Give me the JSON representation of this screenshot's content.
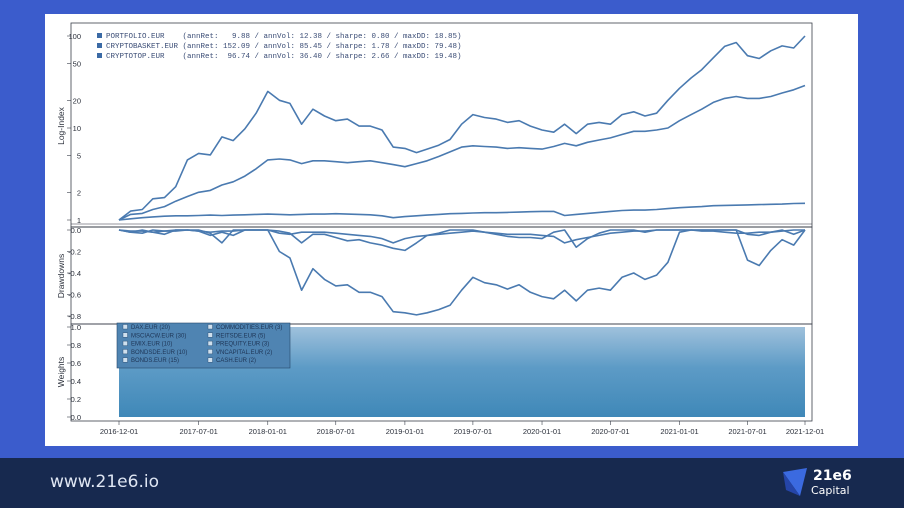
{
  "footer": {
    "url": "www.21e6.io",
    "brand": "21e6",
    "brand_sub": "Capital"
  },
  "colors": {
    "background": "#3b5ccc",
    "footer": "#17294f",
    "line": "#4a7ab0",
    "weights_fill": "#3f88b8"
  },
  "chart_data": [
    {
      "type": "line",
      "ylabel": "Log-Index",
      "yscale": "log",
      "yticks": [
        "1",
        "2",
        "5",
        "10",
        "20",
        "50",
        "100"
      ],
      "ylim": [
        0.85,
        110
      ],
      "x": [
        "2016-12-01",
        "2017-01-01",
        "2017-02-01",
        "2017-03-01",
        "2017-04-01",
        "2017-05-01",
        "2017-06-01",
        "2017-07-01",
        "2017-08-01",
        "2017-09-01",
        "2017-10-01",
        "2017-11-01",
        "2017-12-01",
        "2018-01-01",
        "2018-02-01",
        "2018-03-01",
        "2018-04-01",
        "2018-05-01",
        "2018-06-01",
        "2018-07-01",
        "2018-08-01",
        "2018-09-01",
        "2018-10-01",
        "2018-11-01",
        "2018-12-01",
        "2019-01-01",
        "2019-02-01",
        "2019-03-01",
        "2019-04-01",
        "2019-05-01",
        "2019-06-01",
        "2019-07-01",
        "2019-08-01",
        "2019-09-01",
        "2019-10-01",
        "2019-11-01",
        "2019-12-01",
        "2020-01-01",
        "2020-02-01",
        "2020-03-01",
        "2020-04-01",
        "2020-05-01",
        "2020-06-01",
        "2020-07-01",
        "2020-08-01",
        "2020-09-01",
        "2020-10-01",
        "2020-11-01",
        "2020-12-01",
        "2021-01-01",
        "2021-02-01",
        "2021-03-01",
        "2021-04-01",
        "2021-05-01",
        "2021-06-01",
        "2021-07-01",
        "2021-08-01",
        "2021-09-01",
        "2021-10-01",
        "2021-11-01",
        "2021-12-01"
      ],
      "legend": [
        "PORTFOLIO.EUR    (annRet:   9.88 / annVol: 12.38 / sharpe: 0.80 / maxDD: 18.85)",
        "CRYPTOBASKET.EUR (annRet: 152.09 / annVol: 85.45 / sharpe: 1.78 / maxDD: 79.48)",
        "CRYPTOTOP.EUR    (annRet:  96.74 / annVol: 36.40 / sharpe: 2.66 / maxDD: 19.48)"
      ],
      "series": [
        {
          "name": "PORTFOLIO.EUR",
          "values": [
            1.0,
            1.03,
            1.06,
            1.08,
            1.1,
            1.11,
            1.11,
            1.12,
            1.13,
            1.12,
            1.13,
            1.14,
            1.15,
            1.16,
            1.15,
            1.14,
            1.15,
            1.16,
            1.16,
            1.17,
            1.16,
            1.15,
            1.14,
            1.11,
            1.06,
            1.09,
            1.11,
            1.13,
            1.15,
            1.17,
            1.18,
            1.19,
            1.2,
            1.2,
            1.21,
            1.22,
            1.23,
            1.24,
            1.24,
            1.12,
            1.15,
            1.18,
            1.21,
            1.24,
            1.27,
            1.28,
            1.28,
            1.3,
            1.33,
            1.36,
            1.38,
            1.4,
            1.43,
            1.44,
            1.45,
            1.46,
            1.47,
            1.48,
            1.49,
            1.51,
            1.52
          ]
        },
        {
          "name": "CRYPTOBASKET.EUR",
          "values": [
            1.0,
            1.25,
            1.3,
            1.7,
            1.75,
            2.3,
            4.5,
            5.3,
            5.1,
            8,
            7.3,
            9.8,
            14.5,
            25,
            20,
            18.5,
            11,
            16,
            13.5,
            12,
            12.5,
            10.5,
            10.5,
            9.5,
            6.2,
            6.0,
            5.4,
            5.9,
            6.5,
            7.5,
            11,
            14,
            13,
            12.5,
            11.5,
            12,
            10.5,
            9.5,
            9.0,
            11,
            8.7,
            11,
            11.5,
            11,
            14,
            15,
            13.5,
            14.5,
            20,
            27,
            35,
            43,
            58,
            77,
            85,
            61,
            57,
            69,
            78,
            74,
            100
          ]
        },
        {
          "name": "CRYPTOTOP.EUR",
          "values": [
            1.0,
            1.15,
            1.18,
            1.3,
            1.4,
            1.6,
            1.8,
            2.0,
            2.1,
            2.4,
            2.6,
            3.0,
            3.6,
            4.5,
            4.6,
            4.5,
            4.1,
            4.4,
            4.4,
            4.3,
            4.2,
            4.3,
            4.4,
            4.2,
            4.0,
            3.8,
            4.1,
            4.4,
            4.9,
            5.5,
            6.2,
            6.4,
            6.3,
            6.2,
            6.0,
            6.1,
            6.0,
            5.9,
            6.3,
            6.8,
            6.4,
            7.0,
            7.4,
            7.8,
            8.5,
            9.2,
            9.2,
            9.5,
            10,
            12,
            14,
            16,
            19,
            21,
            22,
            21,
            21,
            22,
            24,
            26,
            29
          ]
        }
      ]
    },
    {
      "type": "line",
      "ylabel": "Drawdowns",
      "yticks": [
        "0.0",
        "-0.2",
        "-0.4",
        "-0.6",
        "-0.8"
      ],
      "ylim": [
        -0.9,
        0.02
      ],
      "series": [
        {
          "name": "PORTFOLIO.EUR",
          "values": [
            0,
            -0.01,
            -0.01,
            -0.02,
            -0.01,
            -0.01,
            0,
            -0.01,
            -0.02,
            -0.01,
            -0.01,
            0,
            0,
            0,
            -0.03,
            -0.04,
            -0.02,
            -0.02,
            -0.02,
            -0.03,
            -0.04,
            -0.05,
            -0.06,
            -0.08,
            -0.12,
            -0.08,
            -0.06,
            -0.05,
            -0.04,
            -0.03,
            -0.02,
            -0.01,
            -0.02,
            -0.03,
            -0.04,
            -0.04,
            -0.04,
            -0.05,
            -0.06,
            -0.12,
            -0.09,
            -0.07,
            -0.05,
            -0.03,
            -0.02,
            -0.01,
            -0.01,
            0,
            0,
            0,
            0,
            -0.01,
            -0.01,
            -0.02,
            -0.03,
            -0.03,
            -0.02,
            -0.02,
            -0.01,
            0,
            0
          ]
        },
        {
          "name": "CRYPTOBASKET.EUR",
          "values": [
            0,
            -0.02,
            0,
            -0.02,
            -0.04,
            0,
            0,
            -0.01,
            -0.05,
            -0.02,
            -0.05,
            0,
            0,
            0,
            -0.2,
            -0.26,
            -0.56,
            -0.36,
            -0.46,
            -0.52,
            -0.51,
            -0.58,
            -0.58,
            -0.62,
            -0.76,
            -0.77,
            -0.79,
            -0.77,
            -0.74,
            -0.7,
            -0.56,
            -0.44,
            -0.49,
            -0.51,
            -0.55,
            -0.51,
            -0.58,
            -0.62,
            -0.64,
            -0.56,
            -0.66,
            -0.56,
            -0.54,
            -0.56,
            -0.44,
            -0.4,
            -0.46,
            -0.42,
            -0.3,
            -0.02,
            0,
            0,
            0,
            0,
            0,
            -0.28,
            -0.33,
            -0.19,
            -0.09,
            -0.14,
            0
          ]
        },
        {
          "name": "CRYPTOTOP.EUR",
          "values": [
            0,
            -0.02,
            -0.03,
            0,
            -0.01,
            0,
            0,
            0,
            -0.03,
            -0.12,
            0,
            0,
            0,
            0,
            -0.01,
            -0.03,
            -0.12,
            -0.04,
            -0.04,
            -0.07,
            -0.1,
            -0.09,
            -0.12,
            -0.14,
            -0.17,
            -0.19,
            -0.12,
            -0.05,
            -0.03,
            0,
            0,
            0,
            -0.02,
            -0.04,
            -0.06,
            -0.07,
            -0.07,
            -0.08,
            -0.02,
            0,
            -0.16,
            -0.08,
            -0.03,
            0,
            0,
            0,
            -0.02,
            0,
            0,
            0,
            0,
            0,
            0,
            0,
            0,
            -0.04,
            -0.05,
            -0.02,
            0,
            -0.04,
            0
          ]
        }
      ]
    },
    {
      "type": "area",
      "ylabel": "Weights",
      "yticks": [
        "0.0",
        "0.2",
        "0.4",
        "0.6",
        "0.8",
        "1.0"
      ],
      "ylim": [
        0,
        1
      ],
      "xticks": [
        "2016-12-01",
        "2017-07-01",
        "2018-01-01",
        "2018-07-01",
        "2019-01-01",
        "2019-07-01",
        "2020-01-01",
        "2020-07-01",
        "2021-01-01",
        "2021-07-01",
        "2021-12-01"
      ],
      "legend": [
        "DAX.EUR (20)",
        "MSCIACW.EUR (30)",
        "EMIX.EUR (10)",
        "BONDSDE.EUR (10)",
        "BONDS.EUR (15)",
        "COMMODITIES.EUR (3)",
        "REITSDE.EUR (5)",
        "PREQUITY.EUR (3)",
        "VNCAPITAL.EUR (2)",
        "CASH.EUR (2)"
      ],
      "values": [
        1.0,
        1.0
      ]
    }
  ]
}
